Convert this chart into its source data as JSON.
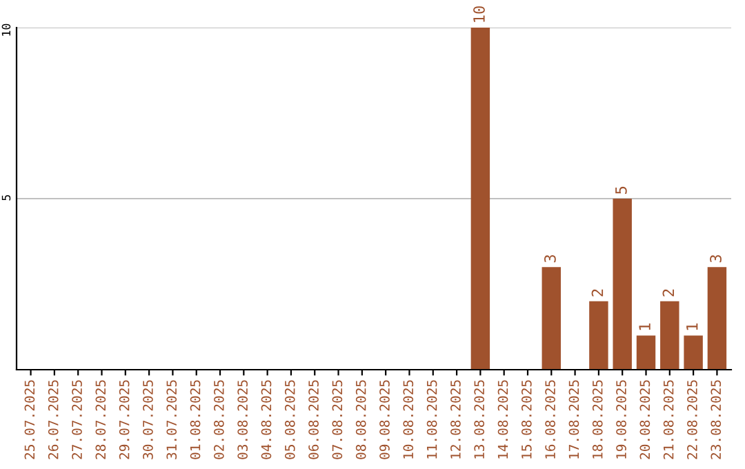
{
  "chart_data": {
    "type": "bar",
    "categories": [
      "25.07.2025",
      "26.07.2025",
      "27.07.2025",
      "28.07.2025",
      "29.07.2025",
      "30.07.2025",
      "31.07.2025",
      "01.08.2025",
      "02.08.2025",
      "03.08.2025",
      "04.08.2025",
      "05.08.2025",
      "06.08.2025",
      "07.08.2025",
      "08.08.2025",
      "09.08.2025",
      "10.08.2025",
      "11.08.2025",
      "12.08.2025",
      "13.08.2025",
      "14.08.2025",
      "15.08.2025",
      "16.08.2025",
      "17.08.2025",
      "18.08.2025",
      "19.08.2025",
      "20.08.2025",
      "21.08.2025",
      "22.08.2025",
      "23.08.2025"
    ],
    "values": [
      0,
      0,
      0,
      0,
      0,
      0,
      0,
      0,
      0,
      0,
      0,
      0,
      0,
      0,
      0,
      0,
      0,
      0,
      0,
      10,
      0,
      0,
      3,
      0,
      2,
      5,
      1,
      2,
      1,
      3
    ],
    "value_labels": [
      null,
      null,
      null,
      null,
      null,
      null,
      null,
      null,
      null,
      null,
      null,
      null,
      null,
      null,
      null,
      null,
      null,
      null,
      null,
      "10",
      null,
      null,
      "3",
      null,
      "2",
      "5",
      "1",
      "2",
      "1",
      "3"
    ],
    "color": "#a0522d",
    "ylim": [
      0,
      10
    ],
    "yticks": [
      5,
      10
    ],
    "grid": "y"
  }
}
